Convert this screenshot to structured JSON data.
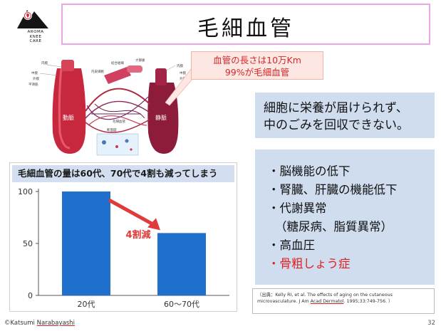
{
  "logo": {
    "lines": [
      "AROMA",
      "KNEE",
      "CARE"
    ]
  },
  "title": "毛細血管",
  "callout": {
    "line1": "血管の長さは10万Km",
    "line2": "99%が毛細血管"
  },
  "diagram": {
    "artery_label": "動脈",
    "vein_label": "静脈",
    "capillary_label": "細動脈",
    "venule_label": "細静脈",
    "small_labels": [
      "内膜",
      "中膜",
      "外膜",
      "平滑筋",
      "内皮細胞",
      "結合組織",
      "断面図",
      "毛細血管",
      "大動脈",
      "大静脈",
      "血管壁"
    ]
  },
  "chart": {
    "title": "毛細血管の量は60代、70代で4割も減ってしまう",
    "annotation": "4割減"
  },
  "chart_data": {
    "type": "bar",
    "categories": [
      "20代",
      "60～70代"
    ],
    "values": [
      100,
      60
    ],
    "title": "毛細血管の量は60代、70代で4割も減ってしまう",
    "xlabel": "",
    "ylabel": "",
    "ylim": [
      0,
      100
    ],
    "yticks": [
      0,
      50,
      100
    ],
    "grid": false,
    "bar_color": "#1f6fcc",
    "annotation_color": "#e03a3a"
  },
  "info1": {
    "line1": "細胞に栄養が届けられず、",
    "line2": "中のごみを回収できない。"
  },
  "info2": {
    "items": [
      {
        "text": "・脳機能の低下",
        "color": "#111111"
      },
      {
        "text": "・腎臓、肝臓の機能低下",
        "color": "#111111"
      },
      {
        "text": "・代謝異常",
        "color": "#111111"
      },
      {
        "text": "（糖尿病、脂質異常）",
        "color": "#111111",
        "sub": true
      },
      {
        "text": "・高血圧",
        "color": "#111111"
      },
      {
        "text": "・骨粗しょう症",
        "color": "#e02020"
      }
    ]
  },
  "citation": {
    "part1": "（出典：Kelly RI, et al. The effects of aging on the cutaneous microvasculature. J Am ",
    "underlined": "Acad Dermatol",
    "part2": ". 1995;33:749-756. ）"
  },
  "footer": {
    "copyright_prefix": "©Katsumi ",
    "copyright_name": "Narabayashi",
    "page_number": "32"
  },
  "colors": {
    "title_border": "#e8a6e4",
    "info_bg": "#cfddef",
    "chart_title_bg": "#d3dff0",
    "accent_red": "#e02020"
  }
}
